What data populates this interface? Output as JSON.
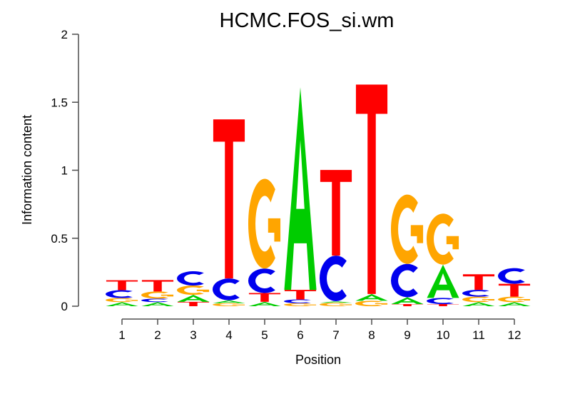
{
  "figure": {
    "background": "#ffffff"
  },
  "chart_data": {
    "type": "bar",
    "subtype": "sequence_logo_stacked_letters",
    "title": "HCMC.FOS_si.wm",
    "xlabel": "Position",
    "ylabel": "Information content",
    "ylim": [
      0,
      2
    ],
    "ytick_values": [
      0,
      0.5,
      1,
      1.5,
      2
    ],
    "ytick_labels": [
      "0",
      "0.5",
      "1",
      "1.5",
      "2"
    ],
    "positions": [
      "1",
      "2",
      "3",
      "4",
      "5",
      "6",
      "7",
      "8",
      "9",
      "10",
      "11",
      "12"
    ],
    "grid": false,
    "legend_position": "none",
    "axis_color": "#4d4d4d",
    "letter_colors": {
      "A": "#00CC00",
      "C": "#0000EE",
      "G": "#FFA500",
      "T": "#FF0000"
    },
    "stacks_order": "bottom_to_top",
    "stacks": [
      [
        {
          "letter": "A",
          "bits": 0.03
        },
        {
          "letter": "G",
          "bits": 0.03
        },
        {
          "letter": "C",
          "bits": 0.058
        },
        {
          "letter": "T",
          "bits": 0.073
        }
      ],
      [
        {
          "letter": "A",
          "bits": 0.03
        },
        {
          "letter": "C",
          "bits": 0.026
        },
        {
          "letter": "G",
          "bits": 0.052
        },
        {
          "letter": "T",
          "bits": 0.084
        }
      ],
      [
        {
          "letter": "T",
          "bits": 0.032
        },
        {
          "letter": "A",
          "bits": 0.052
        },
        {
          "letter": "G",
          "bits": 0.068
        },
        {
          "letter": "C",
          "bits": 0.105
        }
      ],
      [
        {
          "letter": "G",
          "bits": 0.022
        },
        {
          "letter": "A",
          "bits": 0.022
        },
        {
          "letter": "C",
          "bits": 0.16
        },
        {
          "letter": "T",
          "bits": 1.17
        }
      ],
      [
        {
          "letter": "A",
          "bits": 0.032
        },
        {
          "letter": "T",
          "bits": 0.065
        },
        {
          "letter": "C",
          "bits": 0.18
        },
        {
          "letter": "G",
          "bits": 0.66
        }
      ],
      [
        {
          "letter": "G",
          "bits": 0.022
        },
        {
          "letter": "C",
          "bits": 0.028
        },
        {
          "letter": "T",
          "bits": 0.07
        },
        {
          "letter": "A",
          "bits": 1.49
        }
      ],
      [
        {
          "letter": "G",
          "bits": 0.025
        },
        {
          "letter": "A",
          "bits": 0.012
        },
        {
          "letter": "C",
          "bits": 0.335
        },
        {
          "letter": "T",
          "bits": 0.63
        }
      ],
      [
        {
          "letter": "G",
          "bits": 0.04
        },
        {
          "letter": "A",
          "bits": 0.05
        },
        {
          "letter": "T",
          "bits": 1.54
        }
      ],
      [
        {
          "letter": "T",
          "bits": 0.016
        },
        {
          "letter": "A",
          "bits": 0.05
        },
        {
          "letter": "C",
          "bits": 0.245
        },
        {
          "letter": "G",
          "bits": 0.51
        }
      ],
      [
        {
          "letter": "T",
          "bits": 0.016
        },
        {
          "letter": "C",
          "bits": 0.045
        },
        {
          "letter": "A",
          "bits": 0.245
        },
        {
          "letter": "G",
          "bits": 0.375
        }
      ],
      [
        {
          "letter": "A",
          "bits": 0.03
        },
        {
          "letter": "G",
          "bits": 0.04
        },
        {
          "letter": "C",
          "bits": 0.05
        },
        {
          "letter": "T",
          "bits": 0.115
        }
      ],
      [
        {
          "letter": "A",
          "bits": 0.03
        },
        {
          "letter": "G",
          "bits": 0.04
        },
        {
          "letter": "T",
          "bits": 0.095
        },
        {
          "letter": "C",
          "bits": 0.115
        }
      ]
    ]
  }
}
